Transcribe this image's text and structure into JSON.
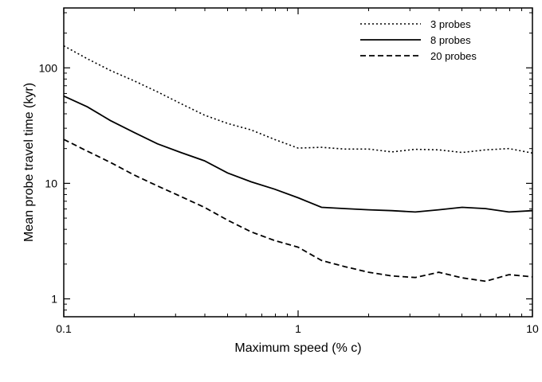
{
  "chart_data": {
    "type": "line",
    "title": "",
    "xlabel": "Maximum speed (% c)",
    "ylabel": "Mean probe travel time (kyr)",
    "xscale": "log",
    "yscale": "log",
    "xlim": [
      0.1,
      10
    ],
    "ylim": [
      0.7,
      330
    ],
    "grid": false,
    "legend_position": "top-right",
    "x_ticks": [
      {
        "value": 0.1,
        "label": "0.1"
      },
      {
        "value": 1,
        "label": "1"
      },
      {
        "value": 10,
        "label": "10"
      }
    ],
    "y_ticks": [
      {
        "value": 1,
        "label": "1"
      },
      {
        "value": 10,
        "label": "10"
      },
      {
        "value": 100,
        "label": "100"
      }
    ],
    "series": [
      {
        "name": "3 probes",
        "style": "dotted",
        "x": [
          0.1,
          0.126,
          0.158,
          0.2,
          0.251,
          0.316,
          0.398,
          0.5,
          0.631,
          0.794,
          1.0,
          1.259,
          1.585,
          2.0,
          2.512,
          3.162,
          3.981,
          5.012,
          6.31,
          7.943,
          10.0
        ],
        "values": [
          155,
          120,
          95,
          77,
          62,
          49,
          39,
          33,
          29,
          24,
          20.2,
          20.5,
          19.8,
          19.8,
          18.7,
          19.7,
          19.5,
          18.5,
          19.5,
          20,
          18.3
        ]
      },
      {
        "name": "8 probes",
        "style": "solid",
        "x": [
          0.1,
          0.126,
          0.158,
          0.2,
          0.251,
          0.316,
          0.398,
          0.5,
          0.631,
          0.794,
          1.0,
          1.259,
          1.585,
          2.0,
          2.512,
          3.162,
          3.981,
          5.012,
          6.31,
          7.943,
          10.0
        ],
        "values": [
          57,
          46,
          35,
          27.5,
          22,
          18.5,
          15.7,
          12.3,
          10.3,
          8.9,
          7.5,
          6.2,
          6.05,
          5.9,
          5.8,
          5.65,
          5.9,
          6.2,
          6.05,
          5.65,
          5.8
        ]
      },
      {
        "name": "20 probes",
        "style": "dashed",
        "x": [
          0.1,
          0.126,
          0.158,
          0.2,
          0.251,
          0.316,
          0.398,
          0.5,
          0.631,
          0.794,
          1.0,
          1.259,
          1.585,
          2.0,
          2.512,
          3.162,
          3.981,
          5.012,
          6.31,
          7.943,
          10.0
        ],
        "values": [
          24,
          19,
          15.2,
          11.8,
          9.5,
          7.7,
          6.2,
          4.8,
          3.8,
          3.2,
          2.8,
          2.15,
          1.9,
          1.7,
          1.58,
          1.53,
          1.7,
          1.52,
          1.42,
          1.62,
          1.55
        ]
      }
    ]
  }
}
